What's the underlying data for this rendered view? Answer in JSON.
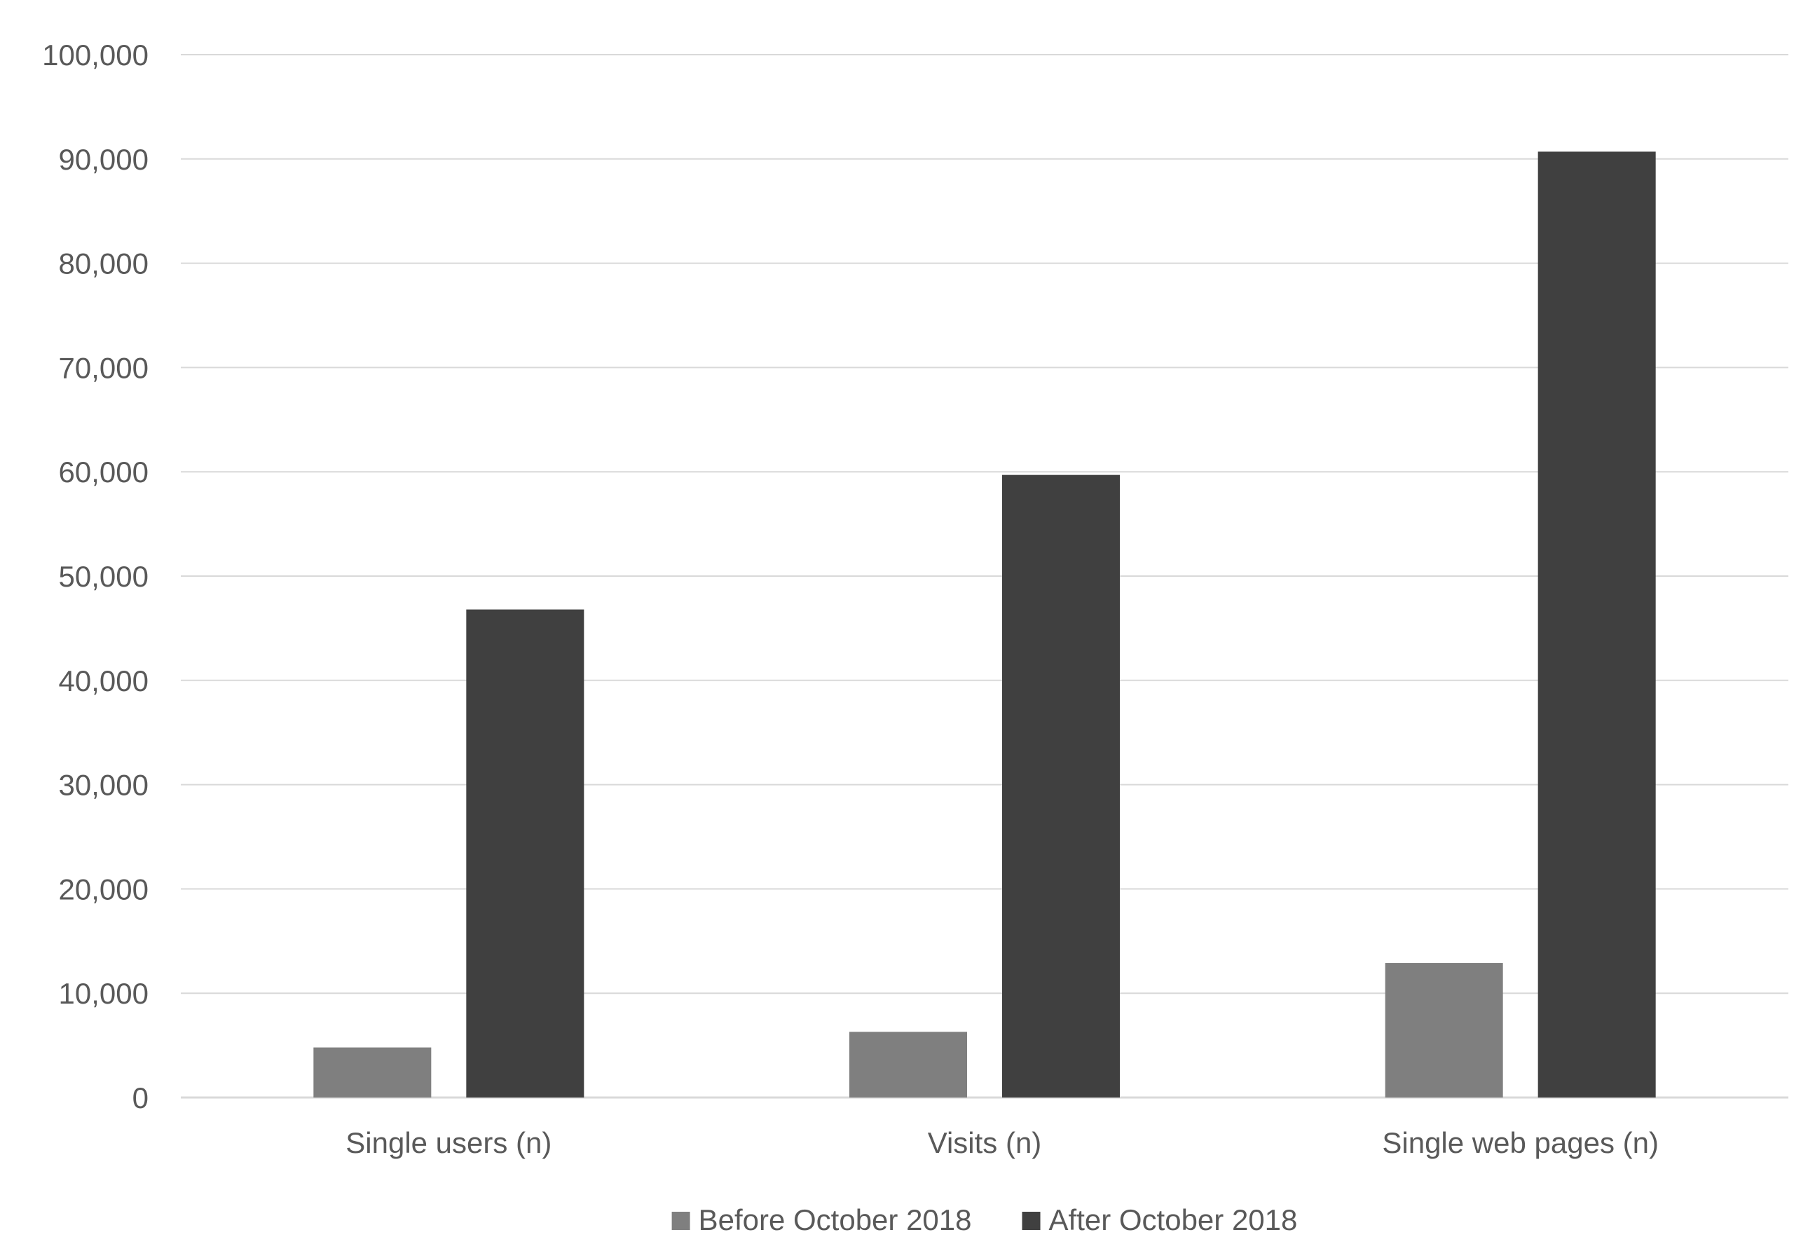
{
  "chart_data": {
    "type": "bar",
    "title": "",
    "xlabel": "",
    "ylabel": "",
    "categories": [
      "Single users (n)",
      "Visits (n)",
      "Single web pages (n)"
    ],
    "series": [
      {
        "name": "Before October 2018",
        "values": [
          4800,
          6300,
          12900
        ]
      },
      {
        "name": "After October 2018",
        "values": [
          46800,
          59700,
          90700
        ]
      }
    ],
    "ylim": [
      0,
      100000
    ],
    "yticks": [
      0,
      10000,
      20000,
      30000,
      40000,
      50000,
      60000,
      70000,
      80000,
      90000,
      100000
    ],
    "ytick_labels": [
      "0",
      "10,000",
      "20,000",
      "30,000",
      "40,000",
      "50,000",
      "60,000",
      "70,000",
      "80,000",
      "90,000",
      "100,000"
    ],
    "grid": true,
    "legend_position": "bottom",
    "colors": {
      "before": "#7f7f7f",
      "after": "#404040",
      "grid": "#d9d9d9",
      "text": "#595959"
    }
  }
}
